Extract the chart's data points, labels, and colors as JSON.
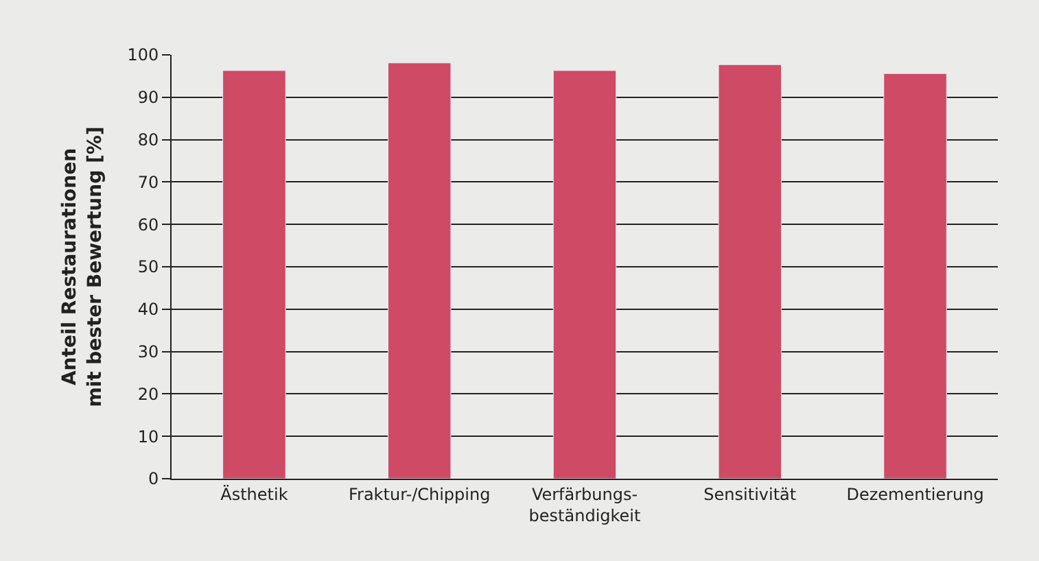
{
  "chart_data": {
    "type": "bar",
    "ylabel": "Anteil Restaurationen\nmit bester Bewertung [%]",
    "categories": [
      "Ästhetik",
      "Fraktur-/Chipping",
      "Verfärbungs-\nbeständigkeit",
      "Sensitivität",
      "Dezementierung"
    ],
    "values": [
      96.3,
      98.1,
      96.3,
      97.7,
      95.6
    ],
    "color": "#cf4a64",
    "ylim": [
      0,
      100
    ],
    "yticks": [
      0,
      10,
      20,
      30,
      40,
      50,
      60,
      70,
      80,
      90,
      100
    ],
    "grid": "y",
    "legend": false
  }
}
